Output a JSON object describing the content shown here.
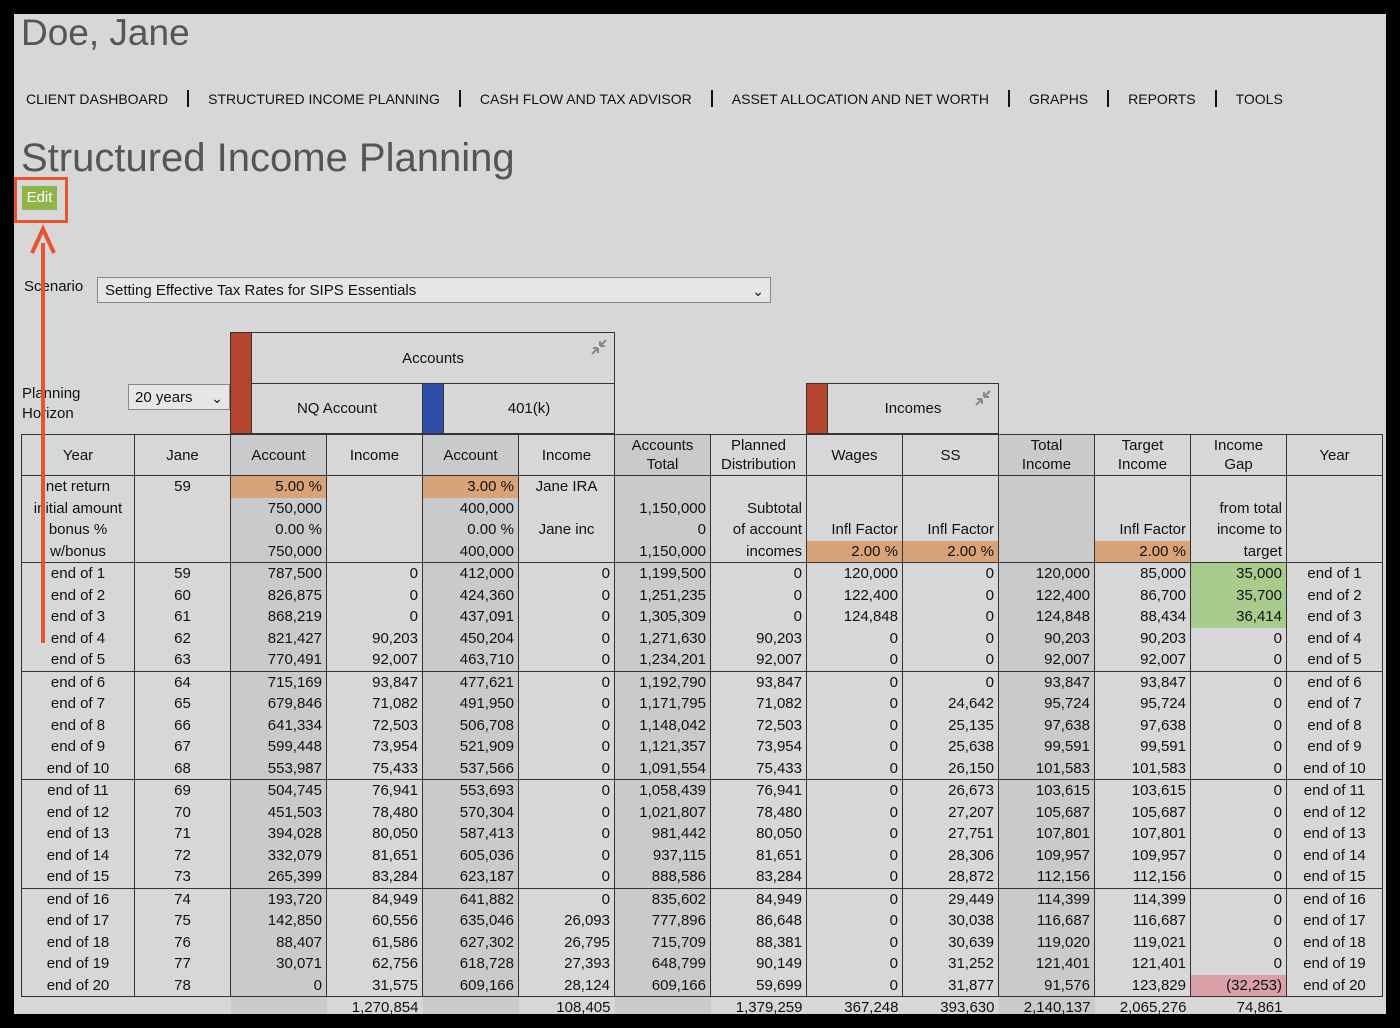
{
  "client": {
    "name": "Doe, Jane"
  },
  "nav": [
    "CLIENT DASHBOARD",
    "STRUCTURED INCOME PLANNING",
    "CASH FLOW AND TAX ADVISOR",
    "ASSET ALLOCATION AND NET WORTH",
    "GRAPHS",
    "REPORTS",
    "TOOLS"
  ],
  "page": {
    "title": "Structured Income Planning",
    "edit_label": "Edit"
  },
  "scenario": {
    "label": "Scenario",
    "value": "Setting Effective Tax Rates for SIPS Essentials"
  },
  "planning_horizon": {
    "label_line1": "Planning",
    "label_line2": "Horizon",
    "value": "20 years"
  },
  "groups": {
    "accounts": "Accounts",
    "nq_account": "NQ Account",
    "k401": "401(k)",
    "incomes": "Incomes"
  },
  "colors": {
    "brand_red": "#b5432e",
    "brand_blue": "#2e4fa8",
    "highlight": "#e8552d"
  },
  "columns": [
    "Year",
    "Jane",
    "Account",
    "Income",
    "Account",
    "Income",
    "Accounts\nTotal",
    "Planned\nDistribution",
    "Wages",
    "SS",
    "Total\nIncome",
    "Target\nIncome",
    "Income\nGap",
    "Year"
  ],
  "param_rows": [
    [
      "net return",
      "59",
      "5.00  %",
      "",
      "3.00  %",
      "Jane IRA",
      "",
      "",
      "",
      "",
      "",
      "",
      "",
      ""
    ],
    [
      "initial amount",
      "",
      "750,000",
      "",
      "400,000",
      "",
      "1,150,000",
      "Subtotal",
      "",
      "",
      "",
      "",
      "from total",
      ""
    ],
    [
      "bonus %",
      "",
      "0.00  %",
      "",
      "0.00  %",
      "Jane inc",
      "0",
      "of account",
      "Infl Factor",
      "Infl Factor",
      "",
      "Infl Factor",
      "income to",
      ""
    ],
    [
      "w/bonus",
      "",
      "750,000",
      "",
      "400,000",
      "",
      "1,150,000",
      "incomes",
      "2.00  %",
      "2.00  %",
      "",
      "2.00  %",
      "target",
      ""
    ]
  ],
  "rows": [
    [
      "end of 1",
      "59",
      "787,500",
      "0",
      "412,000",
      "0",
      "1,199,500",
      "0",
      "120,000",
      "0",
      "120,000",
      "85,000",
      "35,000",
      "end of 1"
    ],
    [
      "end of 2",
      "60",
      "826,875",
      "0",
      "424,360",
      "0",
      "1,251,235",
      "0",
      "122,400",
      "0",
      "122,400",
      "86,700",
      "35,700",
      "end of 2"
    ],
    [
      "end of 3",
      "61",
      "868,219",
      "0",
      "437,091",
      "0",
      "1,305,309",
      "0",
      "124,848",
      "0",
      "124,848",
      "88,434",
      "36,414",
      "end of 3"
    ],
    [
      "end of 4",
      "62",
      "821,427",
      "90,203",
      "450,204",
      "0",
      "1,271,630",
      "90,203",
      "0",
      "0",
      "90,203",
      "90,203",
      "0",
      "end of 4"
    ],
    [
      "end of 5",
      "63",
      "770,491",
      "92,007",
      "463,710",
      "0",
      "1,234,201",
      "92,007",
      "0",
      "0",
      "92,007",
      "92,007",
      "0",
      "end of 5"
    ],
    [
      "end of 6",
      "64",
      "715,169",
      "93,847",
      "477,621",
      "0",
      "1,192,790",
      "93,847",
      "0",
      "0",
      "93,847",
      "93,847",
      "0",
      "end of 6"
    ],
    [
      "end of 7",
      "65",
      "679,846",
      "71,082",
      "491,950",
      "0",
      "1,171,795",
      "71,082",
      "0",
      "24,642",
      "95,724",
      "95,724",
      "0",
      "end of 7"
    ],
    [
      "end of 8",
      "66",
      "641,334",
      "72,503",
      "506,708",
      "0",
      "1,148,042",
      "72,503",
      "0",
      "25,135",
      "97,638",
      "97,638",
      "0",
      "end of 8"
    ],
    [
      "end of 9",
      "67",
      "599,448",
      "73,954",
      "521,909",
      "0",
      "1,121,357",
      "73,954",
      "0",
      "25,638",
      "99,591",
      "99,591",
      "0",
      "end of 9"
    ],
    [
      "end of 10",
      "68",
      "553,987",
      "75,433",
      "537,566",
      "0",
      "1,091,554",
      "75,433",
      "0",
      "26,150",
      "101,583",
      "101,583",
      "0",
      "end of 10"
    ],
    [
      "end of 11",
      "69",
      "504,745",
      "76,941",
      "553,693",
      "0",
      "1,058,439",
      "76,941",
      "0",
      "26,673",
      "103,615",
      "103,615",
      "0",
      "end of 11"
    ],
    [
      "end of 12",
      "70",
      "451,503",
      "78,480",
      "570,304",
      "0",
      "1,021,807",
      "78,480",
      "0",
      "27,207",
      "105,687",
      "105,687",
      "0",
      "end of 12"
    ],
    [
      "end of 13",
      "71",
      "394,028",
      "80,050",
      "587,413",
      "0",
      "981,442",
      "80,050",
      "0",
      "27,751",
      "107,801",
      "107,801",
      "0",
      "end of 13"
    ],
    [
      "end of 14",
      "72",
      "332,079",
      "81,651",
      "605,036",
      "0",
      "937,115",
      "81,651",
      "0",
      "28,306",
      "109,957",
      "109,957",
      "0",
      "end of 14"
    ],
    [
      "end of 15",
      "73",
      "265,399",
      "83,284",
      "623,187",
      "0",
      "888,586",
      "83,284",
      "0",
      "28,872",
      "112,156",
      "112,156",
      "0",
      "end of 15"
    ],
    [
      "end of 16",
      "74",
      "193,720",
      "84,949",
      "641,882",
      "0",
      "835,602",
      "84,949",
      "0",
      "29,449",
      "114,399",
      "114,399",
      "0",
      "end of 16"
    ],
    [
      "end of 17",
      "75",
      "142,850",
      "60,556",
      "635,046",
      "26,093",
      "777,896",
      "86,648",
      "0",
      "30,038",
      "116,687",
      "116,687",
      "0",
      "end of 17"
    ],
    [
      "end of 18",
      "76",
      "88,407",
      "61,586",
      "627,302",
      "26,795",
      "715,709",
      "88,381",
      "0",
      "30,639",
      "119,020",
      "119,021",
      "0",
      "end of 18"
    ],
    [
      "end of 19",
      "77",
      "30,071",
      "62,756",
      "618,728",
      "27,393",
      "648,799",
      "90,149",
      "0",
      "31,252",
      "121,401",
      "121,401",
      "0",
      "end of 19"
    ],
    [
      "end of 20",
      "78",
      "0",
      "31,575",
      "609,166",
      "28,124",
      "609,166",
      "59,699",
      "0",
      "31,877",
      "91,576",
      "123,829",
      "(32,253)",
      "end of 20"
    ]
  ],
  "totals": [
    "",
    "",
    "",
    "1,270,854",
    "",
    "108,405",
    "",
    "1,379,259",
    "367,248",
    "393,630",
    "2,140,137",
    "2,065,276",
    "74,861",
    ""
  ]
}
